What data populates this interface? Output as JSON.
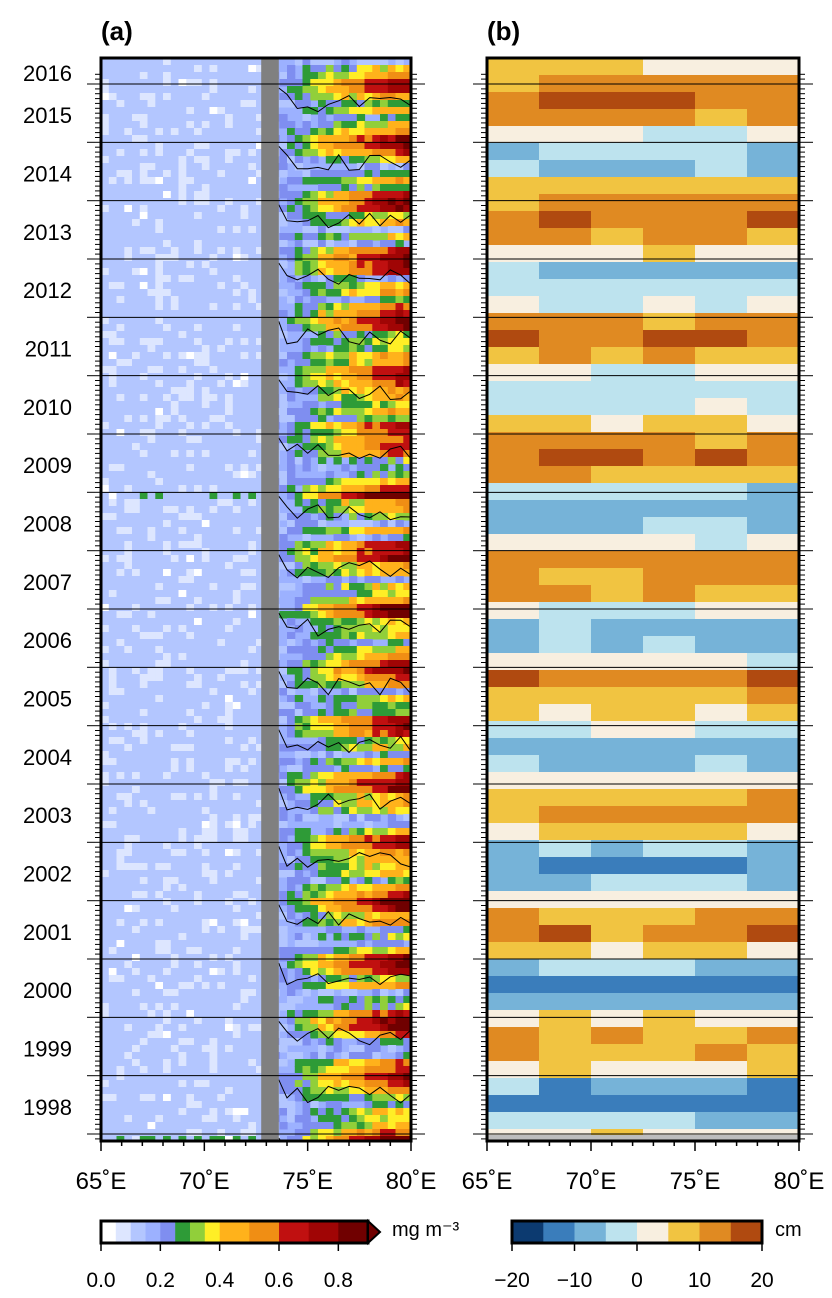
{
  "chart_data": [
    {
      "type": "heatmap",
      "panel_label": "(a)",
      "x_ticks": [
        "65˚E",
        "70˚E",
        "75˚E",
        "80˚E"
      ],
      "xlim": [
        65,
        80
      ],
      "y_ticks": [
        "2016",
        "2015",
        "2014",
        "2013",
        "2012",
        "2011",
        "2010",
        "2009",
        "2008",
        "2007",
        "2006",
        "2005",
        "2004",
        "2003",
        "2002",
        "2001",
        "2000",
        "1999",
        "1998"
      ],
      "masked_longitude_band": [
        72.75,
        73.6
      ],
      "colorbar": {
        "unit": "mg m⁻³",
        "tick_labels": [
          "0.0",
          "0.2",
          "0.4",
          "0.6",
          "0.8"
        ],
        "tick_values": [
          0.0,
          0.2,
          0.4,
          0.6,
          0.8
        ],
        "boundaries": [
          0.0,
          0.05,
          0.1,
          0.15,
          0.2,
          0.25,
          0.3,
          0.35,
          0.4,
          0.5,
          0.6,
          0.7,
          0.8,
          0.9
        ],
        "colors": [
          "#ffffff",
          "#dde6ff",
          "#b3c6ff",
          "#9cb1ff",
          "#7f8ef0",
          "#2e9b37",
          "#91cf3a",
          "#ffee26",
          "#ffb21b",
          "#f08e14",
          "#c01010",
          "#a00505",
          "#700000"
        ],
        "extend_max": true
      }
    },
    {
      "type": "heatmap",
      "panel_label": "(b)",
      "x_ticks": [
        "65˚E",
        "70˚E",
        "75˚E",
        "80˚E"
      ],
      "xlim": [
        65,
        80
      ],
      "colorbar": {
        "unit": "cm",
        "tick_labels": [
          "−20",
          "−10",
          "0",
          "10",
          "20"
        ],
        "tick_values": [
          -20,
          -10,
          0,
          10,
          20
        ],
        "boundaries": [
          -20,
          -15,
          -10,
          -5,
          0,
          5,
          10,
          15,
          20
        ],
        "colors": [
          "#0c3a70",
          "#3a7dbb",
          "#76b3d8",
          "#bde3ee",
          "#f8efe0",
          "#f1c441",
          "#e08a22",
          "#b04a10"
        ]
      }
    }
  ],
  "colors": {
    "mask_gray": "#808080",
    "contour": "#000000"
  }
}
